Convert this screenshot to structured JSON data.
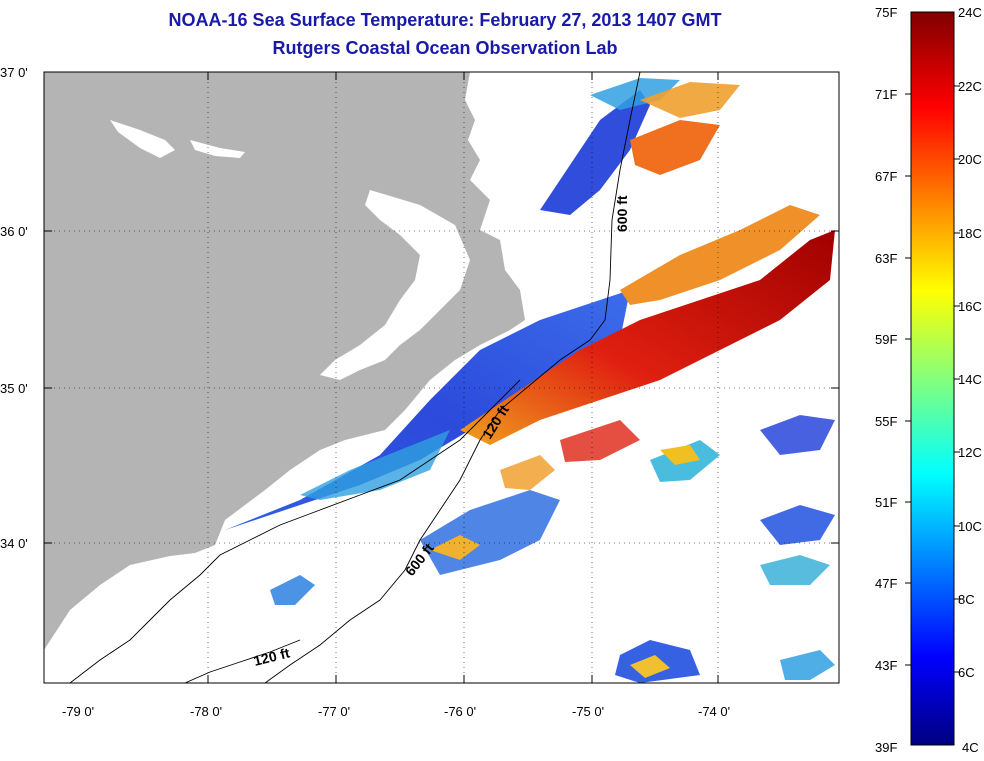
{
  "header": {
    "title": "NOAA-16 Sea Surface Temperature:  February 27, 2013 1407 GMT",
    "subtitle": "Rutgers Coastal Ocean Observation Lab"
  },
  "map": {
    "lat_labels": [
      "37 0'",
      "36 0'",
      "35 0'",
      "34 0'"
    ],
    "lon_labels": [
      "-79 0'",
      "-78 0'",
      "-77 0'",
      "-76 0'",
      "-75 0'",
      "-74 0'"
    ],
    "isobaths": [
      "600 ft",
      "120 ft",
      "600 ft",
      "120 ft"
    ],
    "colors": {
      "land": "#b4b4b4",
      "cold": "#1a3ad8",
      "warm": "#e02010",
      "hot": "#a00000",
      "mild": "#f08a20"
    }
  },
  "colorbar": {
    "fahrenheit": [
      "75F",
      "71F",
      "67F",
      "63F",
      "59F",
      "55F",
      "51F",
      "47F",
      "43F",
      "39F"
    ],
    "celsius": [
      "24C",
      "22C",
      "20C",
      "18C",
      "16C",
      "14C",
      "12C",
      "10C",
      "8C",
      "6C",
      "4C"
    ]
  }
}
